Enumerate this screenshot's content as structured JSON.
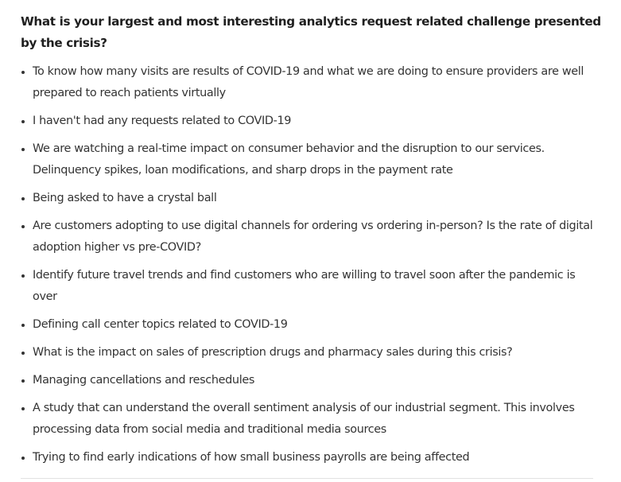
{
  "question": "What is your largest and most interesting analytics request related challenge presented by the crisis?",
  "answers": [
    "To know how many visits are results of COVID-19 and what we are doing to ensure providers are well prepared to reach patients virtually",
    "I haven't had any requests related to COVID-19",
    "We are watching a real-time impact on consumer behavior and the disruption to our services. Delinquency spikes, loan modifications, and sharp drops in the payment rate",
    "Being asked to have a crystal ball",
    "Are customers adopting to use digital channels for ordering vs ordering in-person? Is the rate of digital adoption higher vs pre-COVID?",
    "Identify future travel trends and find customers who are willing to travel soon after the pandemic is over",
    "Defining call center topics related to COVID-19",
    "What is the impact on sales of prescription drugs and pharmacy sales during this crisis?",
    "Managing cancellations and reschedules",
    "A study that can understand the overall sentiment analysis of our industrial segment. This involves processing data from social media and traditional media sources",
    "Trying to find early indications of how small business payrolls are being affected"
  ]
}
